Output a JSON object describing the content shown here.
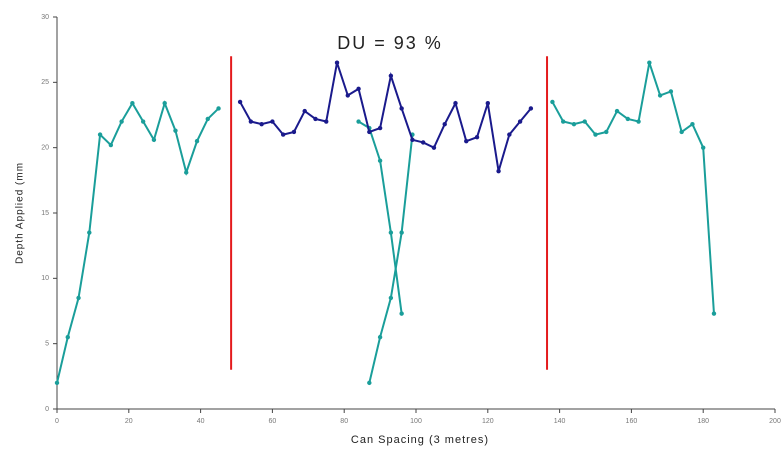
{
  "chart_data": {
    "type": "line",
    "title": "DU = 93 %",
    "x_label": "Can Spacing (3 metres)",
    "y_label": "Depth Applied (mm",
    "xlim": [
      0,
      200
    ],
    "xticks": [
      0,
      20,
      40,
      60,
      80,
      100,
      120,
      140,
      160,
      180,
      200
    ],
    "ylim": [
      0,
      30
    ],
    "yticks": [
      0,
      5,
      10,
      15,
      20,
      25,
      30
    ],
    "vlines": {
      "color": "#e41a1c",
      "x": [
        48.5,
        136.5
      ],
      "y": [
        3,
        27
      ]
    },
    "series": [
      {
        "color": "#1a9e9a",
        "x": [
          0,
          3,
          6,
          9,
          12,
          15,
          18,
          21,
          24,
          27,
          30,
          33,
          36,
          39,
          42,
          45
        ],
        "values": [
          2,
          5.5,
          8.5,
          13.5,
          21,
          20.2,
          22,
          23.4,
          22,
          20.6,
          23.4,
          21.3,
          18.1,
          20.5,
          22.2,
          23
        ]
      },
      {
        "color": "#1a9e9a",
        "x": [
          84,
          87,
          90,
          93,
          96
        ],
        "values": [
          22,
          21.5,
          19,
          13.5,
          7.3
        ]
      },
      {
        "color": "#1a9e9a",
        "x": [
          87,
          90,
          93,
          96,
          99
        ],
        "values": [
          2,
          5.5,
          8.5,
          13.5,
          21
        ]
      },
      {
        "color": "#1a1a8c",
        "x": [
          51,
          54,
          57,
          60,
          63,
          66,
          69,
          72,
          75,
          78,
          81,
          84,
          87,
          90,
          93,
          96,
          99,
          102,
          105,
          108,
          111,
          114,
          117,
          120,
          123,
          126,
          129,
          132
        ],
        "values": [
          23.5,
          22,
          21.8,
          22,
          21,
          21.2,
          22.8,
          22.2,
          22,
          26.5,
          24,
          24.5,
          21.2,
          21.5,
          25.5,
          23,
          20.6,
          20.4,
          20,
          21.8,
          23.4,
          20.5,
          20.8,
          23.4,
          18.2,
          21,
          22,
          23
        ]
      },
      {
        "color": "#1a9e9a",
        "x": [
          138,
          141,
          144,
          147,
          150,
          153,
          156,
          159,
          162,
          165,
          168,
          171,
          174,
          177,
          180,
          183
        ],
        "values": [
          23.5,
          22,
          21.8,
          22,
          21,
          21.2,
          22.8,
          22.2,
          22,
          26.5,
          24,
          24.3,
          21.2,
          21.8,
          20,
          7.3
        ]
      }
    ]
  }
}
